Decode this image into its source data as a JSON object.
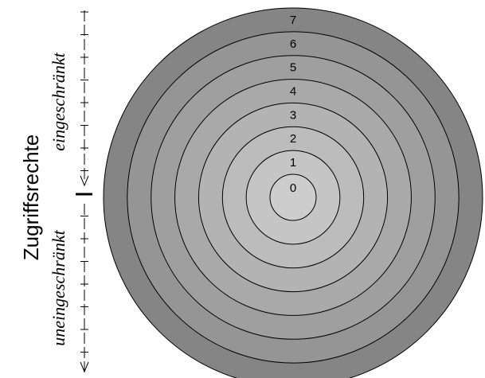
{
  "diagram": {
    "axis_title": "Zugriffsrechte",
    "top_label": "eingeschränkt",
    "bottom_label": "uneingeschränkt",
    "rings": [
      {
        "label": "0",
        "color": "#cdcdcd"
      },
      {
        "label": "1",
        "color": "#c5c5c5"
      },
      {
        "label": "2",
        "color": "#bcbcbc"
      },
      {
        "label": "3",
        "color": "#b3b3b3"
      },
      {
        "label": "4",
        "color": "#a9a9a9"
      },
      {
        "label": "5",
        "color": "#9f9f9f"
      },
      {
        "label": "6",
        "color": "#959595"
      },
      {
        "label": "7",
        "color": "#858585"
      }
    ]
  }
}
